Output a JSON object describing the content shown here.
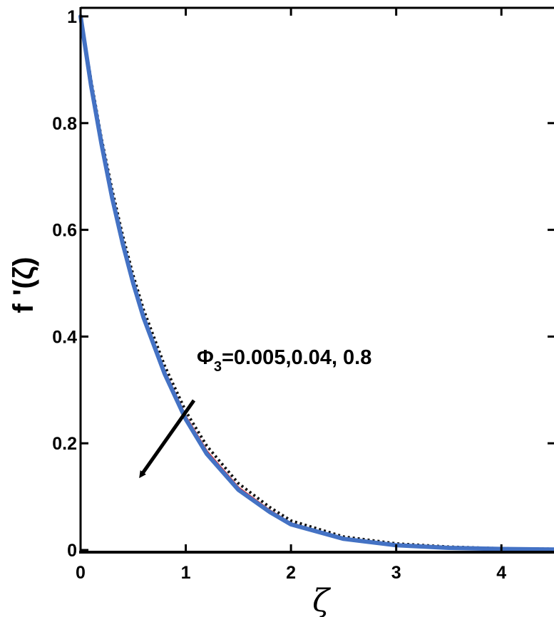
{
  "chart_data": {
    "type": "line",
    "xlabel": "ζ",
    "ylabel": "f '(ζ)",
    "xlim": [
      0,
      4.5
    ],
    "ylim": [
      0,
      1
    ],
    "xticks": [
      "0",
      "1",
      "2",
      "3",
      "4"
    ],
    "yticks": [
      "0",
      "0.2",
      "0.4",
      "0.6",
      "0.8",
      "1"
    ],
    "grid": false,
    "annotation": {
      "symbol": "Φ",
      "subscript": "3",
      "text": "=0.005,0.04, 0.8"
    },
    "series": [
      {
        "style": "dotted",
        "color": "#111111",
        "x": [
          0,
          0.1,
          0.2,
          0.3,
          0.4,
          0.5,
          0.6,
          0.8,
          1.0,
          1.2,
          1.5,
          1.8,
          2.0,
          2.5,
          3.0,
          3.5,
          4.0,
          4.5
        ],
        "y": [
          1.0,
          0.88,
          0.77,
          0.675,
          0.59,
          0.515,
          0.45,
          0.345,
          0.26,
          0.195,
          0.125,
          0.08,
          0.055,
          0.025,
          0.012,
          0.006,
          0.003,
          0.002
        ]
      },
      {
        "style": "solid",
        "color": "#e03030",
        "x": [
          0,
          0.1,
          0.2,
          0.3,
          0.4,
          0.5,
          0.6,
          0.8,
          1.0,
          1.2,
          1.5,
          1.8,
          2.0,
          2.5,
          3.0,
          3.5,
          4.0,
          4.5
        ],
        "y": [
          1.0,
          0.875,
          0.765,
          0.665,
          0.58,
          0.505,
          0.44,
          0.335,
          0.25,
          0.185,
          0.117,
          0.074,
          0.05,
          0.022,
          0.01,
          0.005,
          0.002,
          0.001
        ]
      },
      {
        "style": "solid",
        "color": "#4472c4",
        "x": [
          0,
          0.1,
          0.2,
          0.3,
          0.4,
          0.5,
          0.6,
          0.8,
          1.0,
          1.2,
          1.5,
          1.8,
          2.0,
          2.5,
          3.0,
          3.5,
          4.0,
          4.5
        ],
        "y": [
          1.0,
          0.87,
          0.76,
          0.66,
          0.575,
          0.5,
          0.435,
          0.33,
          0.245,
          0.18,
          0.113,
          0.071,
          0.048,
          0.021,
          0.009,
          0.004,
          0.002,
          0.001
        ]
      }
    ]
  }
}
